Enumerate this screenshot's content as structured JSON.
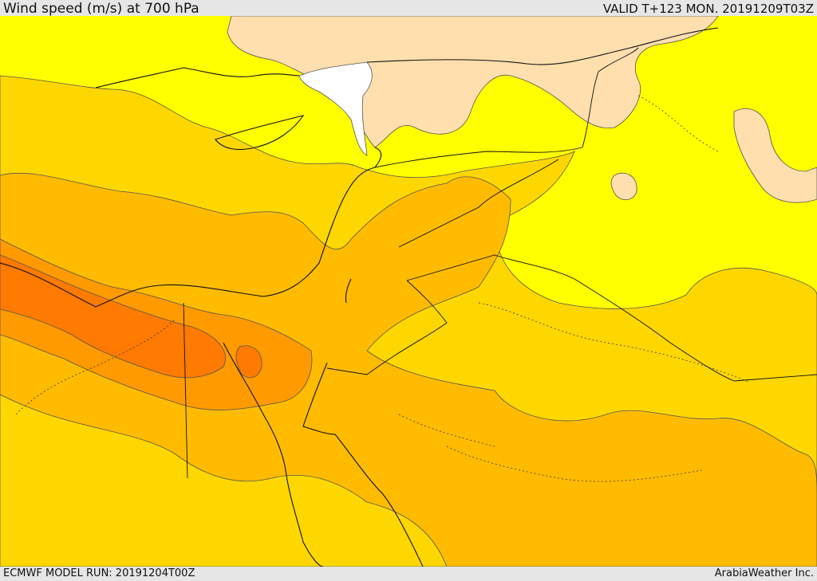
{
  "header": {
    "title": "Wind speed (m/s) at 700 hPa",
    "valid": "VALID T+123 MON. 20191209T03Z"
  },
  "footer": {
    "model_run": "ECMWF MODEL RUN: 20191204T00Z",
    "credit": "ArabiaWeather Inc."
  },
  "map": {
    "variable": "wind speed",
    "units": "m/s",
    "level": "700 hPa",
    "colors": {
      "calmest": "#ffffff",
      "light": "#ffdfae",
      "low": "#ffff00",
      "moderate": "#ffd700",
      "fresh": "#ffbb00",
      "strong": "#ff9a00",
      "strongest": "#ff7a00",
      "coastline": "#111111",
      "contour": "#555555"
    }
  }
}
